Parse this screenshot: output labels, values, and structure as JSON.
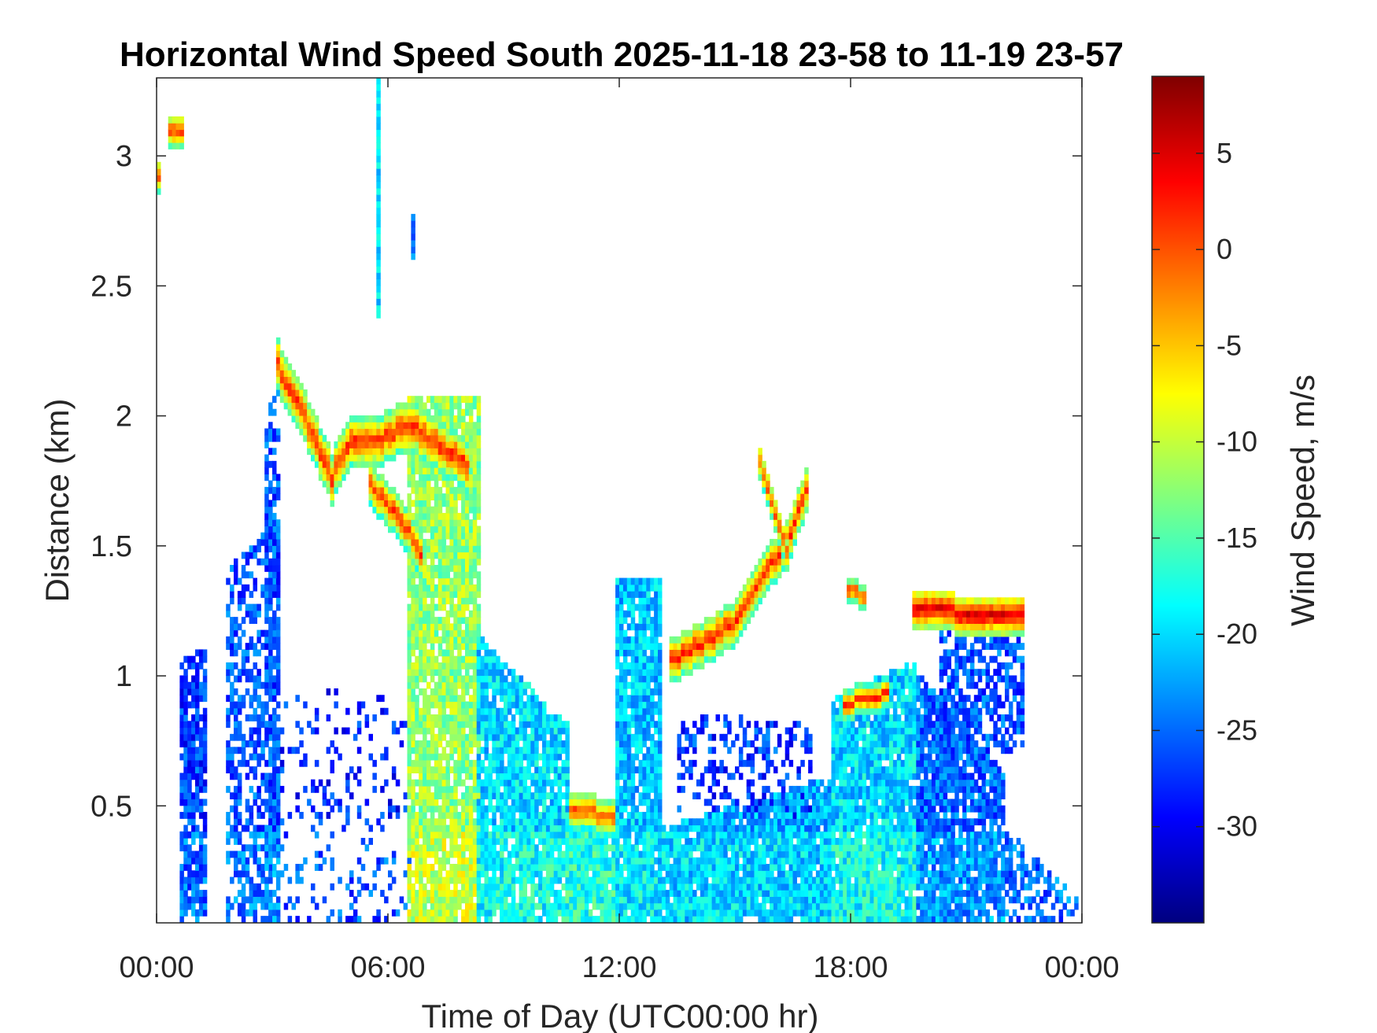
{
  "chart_data": {
    "type": "heatmap",
    "title": "Horizontal Wind Speed South 2025-11-18 23-58 to 11-19 23-57",
    "xlabel": "Time of Day (UTC00:00 hr)",
    "ylabel": "Distance (km)",
    "xlim": [
      0,
      24
    ],
    "ylim": [
      0.05,
      3.3
    ],
    "x_ticks": [
      0,
      6,
      12,
      18,
      24
    ],
    "x_tick_labels": [
      "00:00",
      "06:00",
      "12:00",
      "18:00",
      "00:00"
    ],
    "y_ticks": [
      0.5,
      1,
      1.5,
      2,
      2.5,
      3
    ],
    "y_tick_labels": [
      "0.5",
      "1",
      "1.5",
      "2",
      "2.5",
      "3"
    ],
    "colorbar": {
      "label": "Wind Speed, m/s",
      "colormap": "jet",
      "min": -35,
      "max": 9,
      "ticks": [
        5,
        0,
        -5,
        -10,
        -15,
        -20,
        -25,
        -30
      ],
      "tick_labels": [
        "5",
        "0",
        "-5",
        "-10",
        "-15",
        "-20",
        "-25",
        "-30"
      ]
    },
    "regions": [
      {
        "t0": 0.6,
        "t1": 1.3,
        "hmin": 0.05,
        "h0": 1.05,
        "h1": 1.1,
        "v": -27,
        "dens": 0.8
      },
      {
        "t0": 1.8,
        "t1": 3.2,
        "hmin": 0.05,
        "h0": 1.4,
        "h1": 1.6,
        "v": -26,
        "dens": 0.55
      },
      {
        "t0": 2.8,
        "t1": 3.2,
        "hmin": 0.05,
        "h0": 2.0,
        "h1": 2.1,
        "v": -26,
        "dens": 0.6
      },
      {
        "t0": 3.2,
        "t1": 6.5,
        "hmin": 0.05,
        "h0": 0.95,
        "h1": 0.9,
        "v": -28,
        "dens": 0.18
      },
      {
        "t0": 6.5,
        "t1": 8.3,
        "hmin": 0.05,
        "h0": 2.05,
        "h1": 2.05,
        "v": -12,
        "dens": 0.9
      },
      {
        "t0": 8.3,
        "t1": 10.6,
        "hmin": 0.05,
        "h0": 1.15,
        "h1": 0.8,
        "v": -20,
        "dens": 0.88
      },
      {
        "t0": 10.6,
        "t1": 11.9,
        "hmin": 0.05,
        "h0": 0.5,
        "h1": 0.52,
        "v": -19,
        "dens": 0.95
      },
      {
        "t0": 11.9,
        "t1": 13.0,
        "hmin": 0.05,
        "h0": 1.35,
        "h1": 1.35,
        "v": -21,
        "dens": 0.9
      },
      {
        "t0": 13.0,
        "t1": 17.5,
        "hmin": 0.05,
        "h0": 0.4,
        "h1": 0.6,
        "v": -22,
        "dens": 0.95
      },
      {
        "t0": 13.5,
        "t1": 17.0,
        "hmin": 0.45,
        "h0": 0.85,
        "h1": 0.8,
        "v": -27,
        "dens": 0.35
      },
      {
        "t0": 17.5,
        "t1": 19.7,
        "hmin": 0.05,
        "h0": 0.9,
        "h1": 1.05,
        "v": -20,
        "dens": 0.95
      },
      {
        "t0": 19.7,
        "t1": 22.0,
        "hmin": 0.05,
        "h0": 1.0,
        "h1": 0.6,
        "v": -25,
        "dens": 0.88
      },
      {
        "t0": 22.0,
        "t1": 23.9,
        "hmin": 0.05,
        "h0": 0.4,
        "h1": 0.12,
        "v": -27,
        "dens": 0.55
      },
      {
        "t0": 20.3,
        "t1": 22.5,
        "hmin": 0.7,
        "h0": 1.15,
        "h1": 1.15,
        "v": -26,
        "dens": 0.6
      }
    ],
    "lines": [
      {
        "pts": [
          [
            3.1,
            2.18
          ],
          [
            3.9,
            1.95
          ],
          [
            4.5,
            1.75
          ],
          [
            5.0,
            1.9
          ],
          [
            5.8,
            1.9
          ],
          [
            6.5,
            1.95
          ],
          [
            7.5,
            1.85
          ],
          [
            8.0,
            1.8
          ]
        ],
        "v": 3,
        "w": 0.09
      },
      {
        "pts": [
          [
            5.5,
            1.72
          ],
          [
            6.5,
            1.55
          ],
          [
            6.8,
            1.45
          ]
        ],
        "v": 2,
        "w": 0.08
      },
      {
        "pts": [
          [
            13.3,
            1.05
          ],
          [
            14.0,
            1.1
          ],
          [
            15.0,
            1.2
          ],
          [
            15.8,
            1.4
          ],
          [
            16.3,
            1.5
          ],
          [
            16.9,
            1.75
          ]
        ],
        "v": 3,
        "w": 0.08
      },
      {
        "pts": [
          [
            15.6,
            1.8
          ],
          [
            16.4,
            1.4
          ]
        ],
        "v": 2,
        "w": 0.06
      },
      {
        "pts": [
          [
            10.7,
            0.48
          ],
          [
            11.8,
            0.44
          ]
        ],
        "v": 1,
        "w": 0.07
      },
      {
        "pts": [
          [
            17.8,
            0.88
          ],
          [
            19.0,
            0.92
          ]
        ],
        "v": 3,
        "w": 0.05
      },
      {
        "pts": [
          [
            19.6,
            1.24
          ],
          [
            22.5,
            1.22
          ]
        ],
        "v": 6,
        "w": 0.07
      },
      {
        "pts": [
          [
            0.3,
            3.08
          ],
          [
            0.6,
            3.08
          ]
        ],
        "v": 3,
        "w": 0.06
      },
      {
        "pts": [
          [
            0.02,
            2.92
          ],
          [
            0.12,
            2.84
          ]
        ],
        "v": 2,
        "w": 0.06
      },
      {
        "pts": [
          [
            17.9,
            1.32
          ],
          [
            18.4,
            1.28
          ]
        ],
        "v": 3,
        "w": 0.04
      }
    ],
    "streaks": [
      {
        "t": 5.65,
        "h0": 2.38,
        "h1": 3.28,
        "v": -20
      },
      {
        "t": 6.55,
        "h0": 2.6,
        "h1": 2.75,
        "v": -24
      }
    ]
  }
}
